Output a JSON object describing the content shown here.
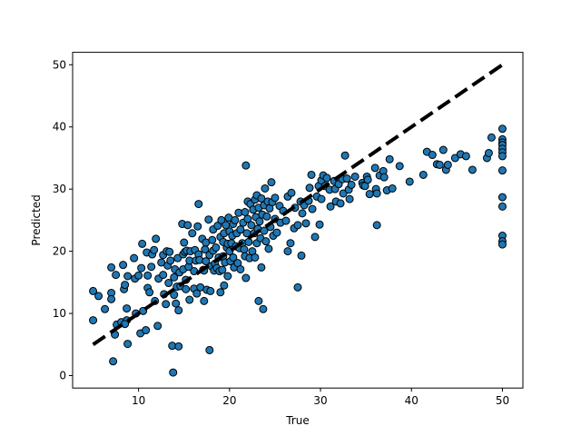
{
  "chart_data": {
    "type": "scatter",
    "xlabel": "True",
    "ylabel": "Predicted",
    "xlim": [
      2.75,
      52.25
    ],
    "ylim": [
      -2.0,
      52.0
    ],
    "xticks": [
      10,
      20,
      30,
      40,
      50
    ],
    "yticks": [
      0,
      10,
      20,
      30,
      40,
      50
    ],
    "grid": false,
    "colors": {
      "point_fill": "#1f77b4",
      "point_edge": "#000000",
      "reference_line": "#000000"
    },
    "reference_line": {
      "style": "dashed",
      "x": [
        5,
        50
      ],
      "y": [
        5,
        50
      ]
    },
    "points": [
      [
        5.0,
        13.6
      ],
      [
        5.0,
        8.9
      ],
      [
        5.6,
        12.8
      ],
      [
        6.3,
        10.7
      ],
      [
        7.0,
        13.3
      ],
      [
        7.0,
        12.3
      ],
      [
        7.0,
        17.4
      ],
      [
        7.2,
        2.3
      ],
      [
        7.4,
        6.6
      ],
      [
        7.5,
        16.2
      ],
      [
        7.6,
        8.2
      ],
      [
        8.1,
        8.6
      ],
      [
        8.3,
        17.8
      ],
      [
        8.4,
        13.9
      ],
      [
        8.5,
        14.6
      ],
      [
        8.8,
        5.1
      ],
      [
        8.8,
        16.0
      ],
      [
        8.7,
        10.8
      ],
      [
        8.7,
        8.9
      ],
      [
        8.5,
        8.3
      ],
      [
        9.5,
        18.9
      ],
      [
        9.7,
        10.0
      ],
      [
        9.6,
        15.6
      ],
      [
        10.0,
        16.1
      ],
      [
        10.2,
        6.8
      ],
      [
        10.3,
        17.3
      ],
      [
        10.4,
        21.2
      ],
      [
        10.5,
        10.4
      ],
      [
        10.8,
        7.3
      ],
      [
        10.9,
        19.8
      ],
      [
        11.0,
        16.1
      ],
      [
        11.0,
        14.1
      ],
      [
        11.2,
        13.4
      ],
      [
        11.4,
        17.5
      ],
      [
        11.5,
        19.5
      ],
      [
        11.7,
        20.2
      ],
      [
        11.8,
        12.0
      ],
      [
        11.9,
        22.0
      ],
      [
        12.1,
        8.0
      ],
      [
        12.2,
        15.6
      ],
      [
        12.5,
        18.2
      ],
      [
        12.7,
        19.4
      ],
      [
        12.7,
        16.2
      ],
      [
        12.8,
        13.1
      ],
      [
        13.0,
        11.5
      ],
      [
        13.1,
        20.0
      ],
      [
        13.2,
        17.7
      ],
      [
        13.3,
        14.9
      ],
      [
        13.4,
        19.9
      ],
      [
        13.5,
        18.5
      ],
      [
        13.7,
        4.8
      ],
      [
        13.8,
        0.5
      ],
      [
        13.9,
        15.8
      ],
      [
        13.9,
        13.0
      ],
      [
        14.0,
        17.1
      ],
      [
        14.1,
        11.6
      ],
      [
        14.2,
        14.3
      ],
      [
        14.3,
        18.9
      ],
      [
        14.4,
        4.7
      ],
      [
        14.4,
        10.5
      ],
      [
        14.5,
        16.6
      ],
      [
        14.6,
        14.4
      ],
      [
        14.8,
        24.4
      ],
      [
        14.9,
        19.5
      ],
      [
        14.9,
        17.1
      ],
      [
        15.0,
        21.4
      ],
      [
        15.1,
        19.9
      ],
      [
        15.2,
        13.9
      ],
      [
        15.2,
        15.4
      ],
      [
        15.3,
        20.1
      ],
      [
        15.4,
        24.2
      ],
      [
        15.5,
        17.5
      ],
      [
        15.6,
        12.2
      ],
      [
        15.6,
        18.5
      ],
      [
        15.7,
        20.0
      ],
      [
        15.9,
        22.9
      ],
      [
        16.1,
        16.8
      ],
      [
        16.1,
        14.0
      ],
      [
        16.2,
        20.2
      ],
      [
        16.3,
        18.5
      ],
      [
        16.4,
        13.2
      ],
      [
        16.5,
        24.0
      ],
      [
        16.6,
        27.6
      ],
      [
        16.6,
        19.5
      ],
      [
        16.7,
        18.6
      ],
      [
        16.8,
        14.2
      ],
      [
        17.0,
        22.0
      ],
      [
        17.1,
        17.0
      ],
      [
        17.2,
        16.9
      ],
      [
        17.2,
        12.0
      ],
      [
        17.3,
        20.3
      ],
      [
        17.4,
        21.4
      ],
      [
        17.4,
        18.4
      ],
      [
        17.5,
        13.8
      ],
      [
        17.7,
        25.1
      ],
      [
        17.8,
        19.4
      ],
      [
        17.8,
        4.1
      ],
      [
        17.9,
        13.6
      ],
      [
        18.0,
        17.6
      ],
      [
        18.1,
        21.8
      ],
      [
        18.2,
        20.1
      ],
      [
        18.2,
        23.5
      ],
      [
        18.3,
        16.9
      ],
      [
        18.4,
        18.0
      ],
      [
        18.5,
        20.6
      ],
      [
        18.6,
        17.3
      ],
      [
        18.7,
        24.1
      ],
      [
        18.8,
        19.0
      ],
      [
        18.9,
        16.8
      ],
      [
        19.0,
        22.3
      ],
      [
        19.0,
        13.4
      ],
      [
        19.1,
        25.0
      ],
      [
        19.2,
        17.0
      ],
      [
        19.3,
        21.5
      ],
      [
        19.3,
        19.2
      ],
      [
        19.4,
        14.5
      ],
      [
        19.4,
        22.9
      ],
      [
        19.5,
        18.2
      ],
      [
        19.6,
        24.2
      ],
      [
        19.7,
        20.6
      ],
      [
        19.8,
        16.0
      ],
      [
        19.8,
        21.2
      ],
      [
        19.9,
        25.4
      ],
      [
        20.0,
        20.0
      ],
      [
        20.0,
        23.2
      ],
      [
        20.1,
        18.4
      ],
      [
        20.2,
        21.3
      ],
      [
        20.3,
        22.5
      ],
      [
        20.4,
        24.4
      ],
      [
        20.4,
        19.0
      ],
      [
        20.5,
        17.4
      ],
      [
        20.6,
        25.0
      ],
      [
        20.7,
        20.8
      ],
      [
        20.8,
        22.9
      ],
      [
        20.9,
        18.1
      ],
      [
        21.0,
        26.2
      ],
      [
        21.1,
        20.5
      ],
      [
        21.2,
        23.5
      ],
      [
        21.2,
        17.1
      ],
      [
        21.4,
        21.3
      ],
      [
        21.5,
        24.6
      ],
      [
        21.6,
        20.3
      ],
      [
        21.7,
        26.3
      ],
      [
        21.7,
        19.2
      ],
      [
        21.8,
        33.8
      ],
      [
        21.8,
        15.7
      ],
      [
        21.9,
        22.9
      ],
      [
        22.0,
        28.0
      ],
      [
        22.0,
        25.2
      ],
      [
        22.1,
        21.5
      ],
      [
        22.2,
        18.9
      ],
      [
        22.3,
        27.6
      ],
      [
        22.4,
        24.2
      ],
      [
        22.5,
        20.0
      ],
      [
        22.6,
        26.7
      ],
      [
        22.7,
        22.9
      ],
      [
        22.8,
        28.3
      ],
      [
        22.8,
        19.0
      ],
      [
        22.9,
        25.5
      ],
      [
        23.0,
        21.3
      ],
      [
        23.0,
        29.0
      ],
      [
        23.1,
        23.6
      ],
      [
        23.2,
        27.0
      ],
      [
        23.2,
        12.0
      ],
      [
        23.3,
        24.8
      ],
      [
        23.4,
        22.1
      ],
      [
        23.5,
        28.5
      ],
      [
        23.5,
        17.4
      ],
      [
        23.6,
        25.9
      ],
      [
        23.7,
        10.7
      ],
      [
        23.8,
        27.4
      ],
      [
        23.8,
        23.3
      ],
      [
        23.9,
        30.1
      ],
      [
        24.0,
        21.6
      ],
      [
        24.1,
        25.6
      ],
      [
        24.2,
        28.0
      ],
      [
        24.3,
        20.4
      ],
      [
        24.4,
        26.9
      ],
      [
        24.5,
        23.9
      ],
      [
        24.6,
        31.1
      ],
      [
        24.7,
        27.9
      ],
      [
        24.8,
        22.5
      ],
      [
        25.0,
        25.2
      ],
      [
        25.0,
        28.6
      ],
      [
        25.2,
        23.0
      ],
      [
        25.5,
        27.3
      ],
      [
        25.6,
        24.6
      ],
      [
        25.9,
        26.5
      ],
      [
        26.2,
        24.9
      ],
      [
        26.4,
        28.8
      ],
      [
        26.4,
        20.0
      ],
      [
        26.7,
        21.3
      ],
      [
        26.8,
        29.4
      ],
      [
        27.1,
        23.7
      ],
      [
        27.2,
        27.0
      ],
      [
        27.5,
        14.2
      ],
      [
        27.5,
        24.2
      ],
      [
        27.8,
        28.0
      ],
      [
        27.9,
        19.3
      ],
      [
        28.0,
        26.1
      ],
      [
        28.2,
        27.4
      ],
      [
        28.4,
        24.5
      ],
      [
        28.7,
        28.1
      ],
      [
        28.8,
        30.2
      ],
      [
        29.0,
        32.3
      ],
      [
        29.1,
        26.8
      ],
      [
        29.4,
        22.3
      ],
      [
        29.6,
        28.8
      ],
      [
        29.8,
        30.5
      ],
      [
        29.9,
        24.3
      ],
      [
        30.1,
        31.4
      ],
      [
        30.1,
        28.4
      ],
      [
        30.3,
        32.2
      ],
      [
        30.5,
        30.5
      ],
      [
        30.7,
        31.8
      ],
      [
        31.0,
        29.9
      ],
      [
        31.1,
        27.2
      ],
      [
        31.5,
        31.3
      ],
      [
        31.6,
        30.0
      ],
      [
        31.7,
        28.0
      ],
      [
        32.0,
        30.8
      ],
      [
        32.2,
        27.7
      ],
      [
        32.4,
        31.6
      ],
      [
        32.5,
        29.3
      ],
      [
        32.7,
        35.4
      ],
      [
        32.9,
        31.7
      ],
      [
        33.1,
        29.9
      ],
      [
        33.2,
        28.4
      ],
      [
        33.4,
        30.7
      ],
      [
        33.8,
        32.0
      ],
      [
        34.6,
        31.0
      ],
      [
        34.7,
        30.6
      ],
      [
        34.9,
        30.5
      ],
      [
        35.1,
        32.0
      ],
      [
        35.2,
        31.5
      ],
      [
        35.4,
        29.2
      ],
      [
        36.0,
        33.4
      ],
      [
        36.1,
        30.0
      ],
      [
        36.2,
        29.3
      ],
      [
        36.2,
        24.2
      ],
      [
        36.5,
        32.2
      ],
      [
        36.9,
        32.9
      ],
      [
        37.0,
        31.9
      ],
      [
        37.3,
        29.8
      ],
      [
        37.6,
        34.8
      ],
      [
        37.9,
        30.1
      ],
      [
        38.7,
        33.7
      ],
      [
        39.8,
        31.2
      ],
      [
        41.3,
        32.3
      ],
      [
        41.7,
        36.0
      ],
      [
        42.3,
        35.5
      ],
      [
        42.8,
        34.0
      ],
      [
        43.1,
        33.9
      ],
      [
        43.5,
        36.3
      ],
      [
        43.8,
        33.1
      ],
      [
        44.0,
        33.9
      ],
      [
        44.8,
        35.0
      ],
      [
        45.4,
        35.6
      ],
      [
        46.0,
        35.3
      ],
      [
        46.7,
        33.1
      ],
      [
        48.3,
        35.0
      ],
      [
        48.5,
        35.8
      ],
      [
        48.8,
        38.3
      ],
      [
        50.0,
        39.7
      ],
      [
        50.0,
        38.0
      ],
      [
        50.0,
        37.5
      ],
      [
        50.0,
        37.1
      ],
      [
        50.0,
        36.5
      ],
      [
        50.0,
        35.9
      ],
      [
        50.0,
        35.3
      ],
      [
        50.0,
        33.0
      ],
      [
        50.0,
        28.7
      ],
      [
        50.0,
        27.2
      ],
      [
        50.0,
        22.5
      ],
      [
        50.0,
        21.6
      ],
      [
        50.0,
        21.1
      ]
    ]
  }
}
